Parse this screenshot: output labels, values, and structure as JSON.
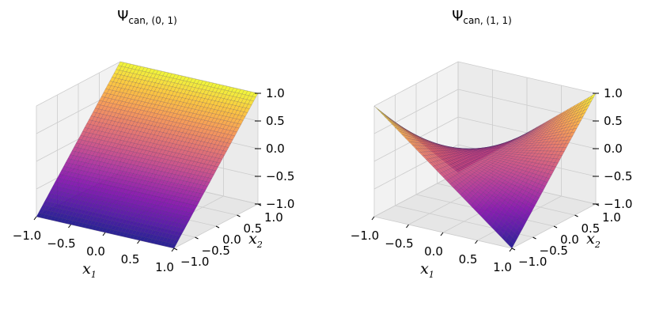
{
  "colors": {
    "pane_left": "#f2f2f2",
    "pane_right": "#ebebeb",
    "pane_floor": "#e6e6e6",
    "grid": "#cccccc",
    "mesh_edge": "#3a2a66",
    "colormap": "plasma"
  },
  "chart_data": [
    {
      "type": "surface3d",
      "title": "Ψ",
      "title_subscript": "can, (0, 1)",
      "function": "x2",
      "xlabel": "x",
      "xlabel_sub": "1",
      "ylabel": "x",
      "ylabel_sub": "2",
      "xlim": [
        -1.0,
        1.0
      ],
      "ylim": [
        -1.0,
        1.0
      ],
      "zlim": [
        -1.0,
        1.0
      ],
      "x_ticks": [
        "−1.0",
        "−0.5",
        "0.0",
        "0.5",
        "1.0"
      ],
      "y_ticks": [
        "−1.0",
        "−0.5",
        "0.0",
        "0.5",
        "1.0"
      ],
      "z_ticks": [
        "−1.0",
        "−0.5",
        "0.0",
        "0.5",
        "1.0"
      ],
      "grid_points": 40
    },
    {
      "type": "surface3d",
      "title": "Ψ",
      "title_subscript": "can, (1, 1)",
      "function": "x1*x2",
      "xlabel": "x",
      "xlabel_sub": "1",
      "ylabel": "x",
      "ylabel_sub": "2",
      "xlim": [
        -1.0,
        1.0
      ],
      "ylim": [
        -1.0,
        1.0
      ],
      "zlim": [
        -1.0,
        1.0
      ],
      "x_ticks": [
        "−1.0",
        "−0.5",
        "0.0",
        "0.5",
        "1.0"
      ],
      "y_ticks": [
        "−1.0",
        "−0.5",
        "0.0",
        "0.5",
        "1.0"
      ],
      "z_ticks": [
        "−1.0",
        "−0.5",
        "0.0",
        "0.5",
        "1.0"
      ],
      "grid_points": 40
    }
  ]
}
